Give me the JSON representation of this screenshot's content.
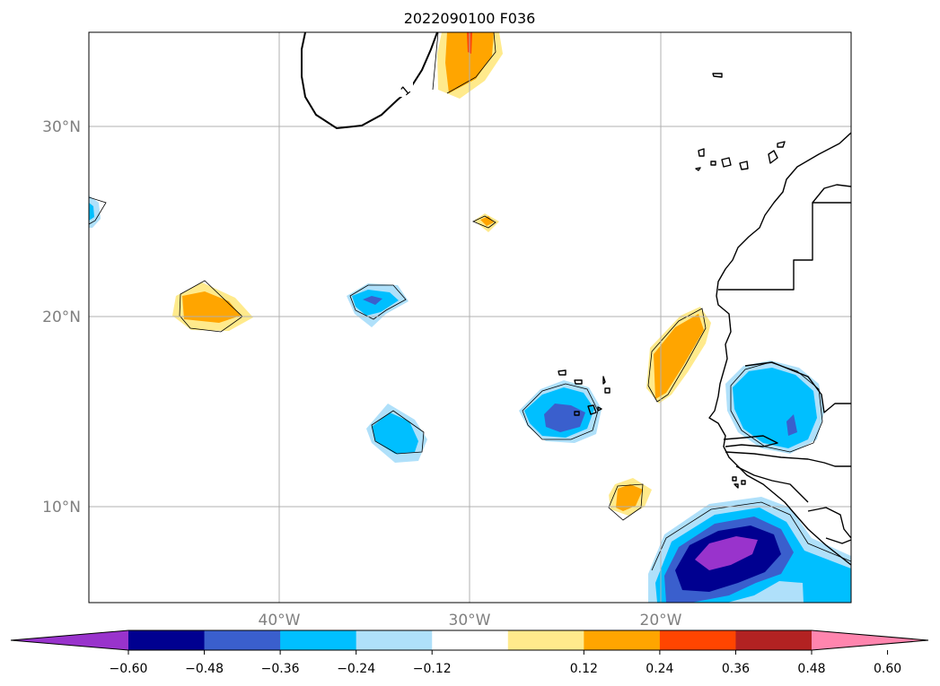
{
  "title": "2022090100 F036",
  "map": {
    "lon_range": [
      -50,
      -10
    ],
    "lat_range": [
      5,
      35
    ],
    "gridlines": true,
    "lon_labels": [
      "40°W",
      "30°W",
      "20°W"
    ],
    "lat_labels": [
      "30°N",
      "20°N",
      "10°N"
    ],
    "contour_label": "1"
  },
  "colorbar": {
    "extend": "both",
    "tick_labels": [
      "−0.60",
      "−0.48",
      "−0.36",
      "−0.24",
      "−0.12",
      "0.12",
      "0.24",
      "0.36",
      "0.48",
      "0.60"
    ],
    "levels": [
      -0.6,
      -0.48,
      -0.36,
      -0.24,
      -0.12,
      0.12,
      0.24,
      0.36,
      0.48,
      0.6
    ],
    "colors": [
      "#9933cc",
      "#000090",
      "#3a5fcd",
      "#00bfff",
      "#afe0fa",
      "#ffffff",
      "#ffea8c",
      "#ffa500",
      "#ff4500",
      "#b22222",
      "#ff85ae"
    ]
  }
}
